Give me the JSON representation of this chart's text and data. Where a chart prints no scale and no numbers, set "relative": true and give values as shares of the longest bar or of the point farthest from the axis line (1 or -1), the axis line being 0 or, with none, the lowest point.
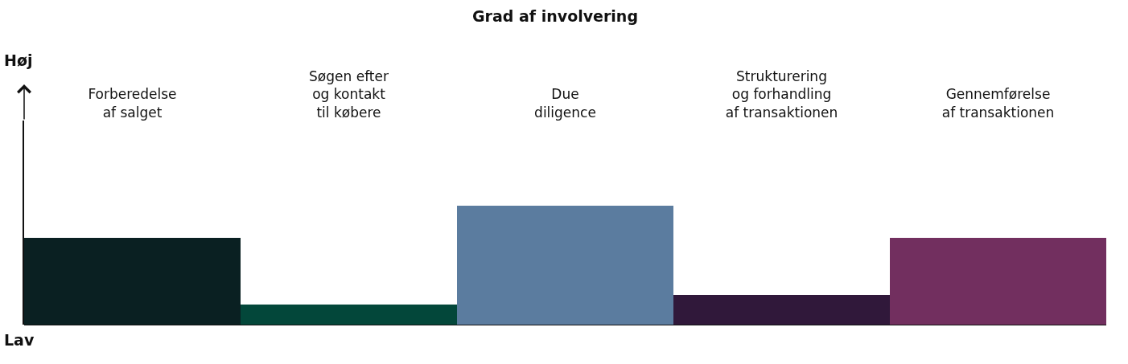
{
  "chart_data": {
    "type": "bar",
    "title": "Grad af involvering",
    "relative": true,
    "categories": [
      "Forberedelse\naf salget",
      "Søgen efter\nog kontakt\ntil købere",
      "Due\ndiligence",
      "Strukturering\nog forhandling\naf transaktionen",
      "Gennemførelse\naf transaktionen"
    ],
    "values": [
      0.73,
      0.17,
      1,
      0.25,
      0.73
    ],
    "colors": [
      "#0a2022",
      "#03473a",
      "#5b7c9f",
      "#30183a",
      "#722f5f"
    ],
    "annotations": [
      "Høj",
      "Lav"
    ]
  }
}
